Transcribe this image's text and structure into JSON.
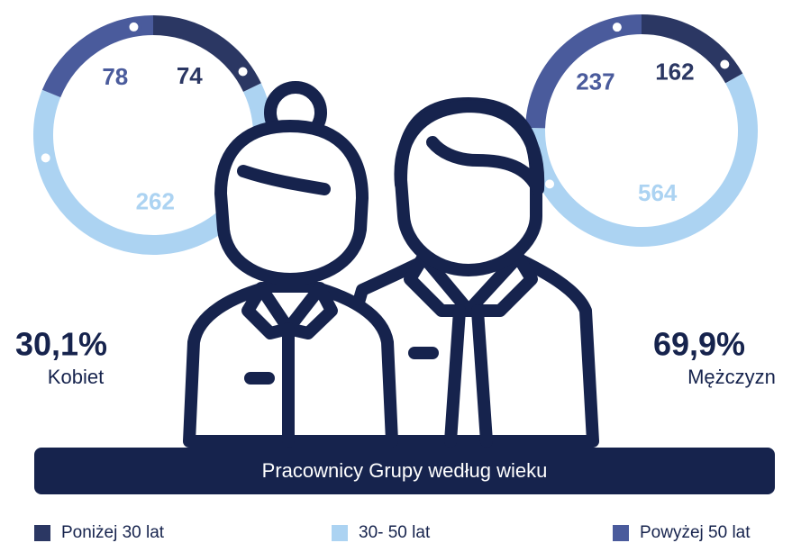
{
  "title": "Pracownicy Grupy według wieku",
  "categories": [
    "Poniżej 30 lat",
    "30- 50 lat",
    "Powyżej 50 lat"
  ],
  "colors": [
    "#2b3763",
    "#acd3f2",
    "#4a5b9c"
  ],
  "chart_data": [
    {
      "type": "donut",
      "caption": "Kobiet",
      "share": {
        "value": 30.1,
        "label": "30,1%"
      },
      "values": [
        74,
        262,
        78
      ]
    },
    {
      "type": "donut",
      "caption": "Mężczyzn",
      "share": {
        "value": 69.9,
        "label": "69,9%"
      },
      "values": [
        162,
        564,
        237
      ]
    }
  ]
}
